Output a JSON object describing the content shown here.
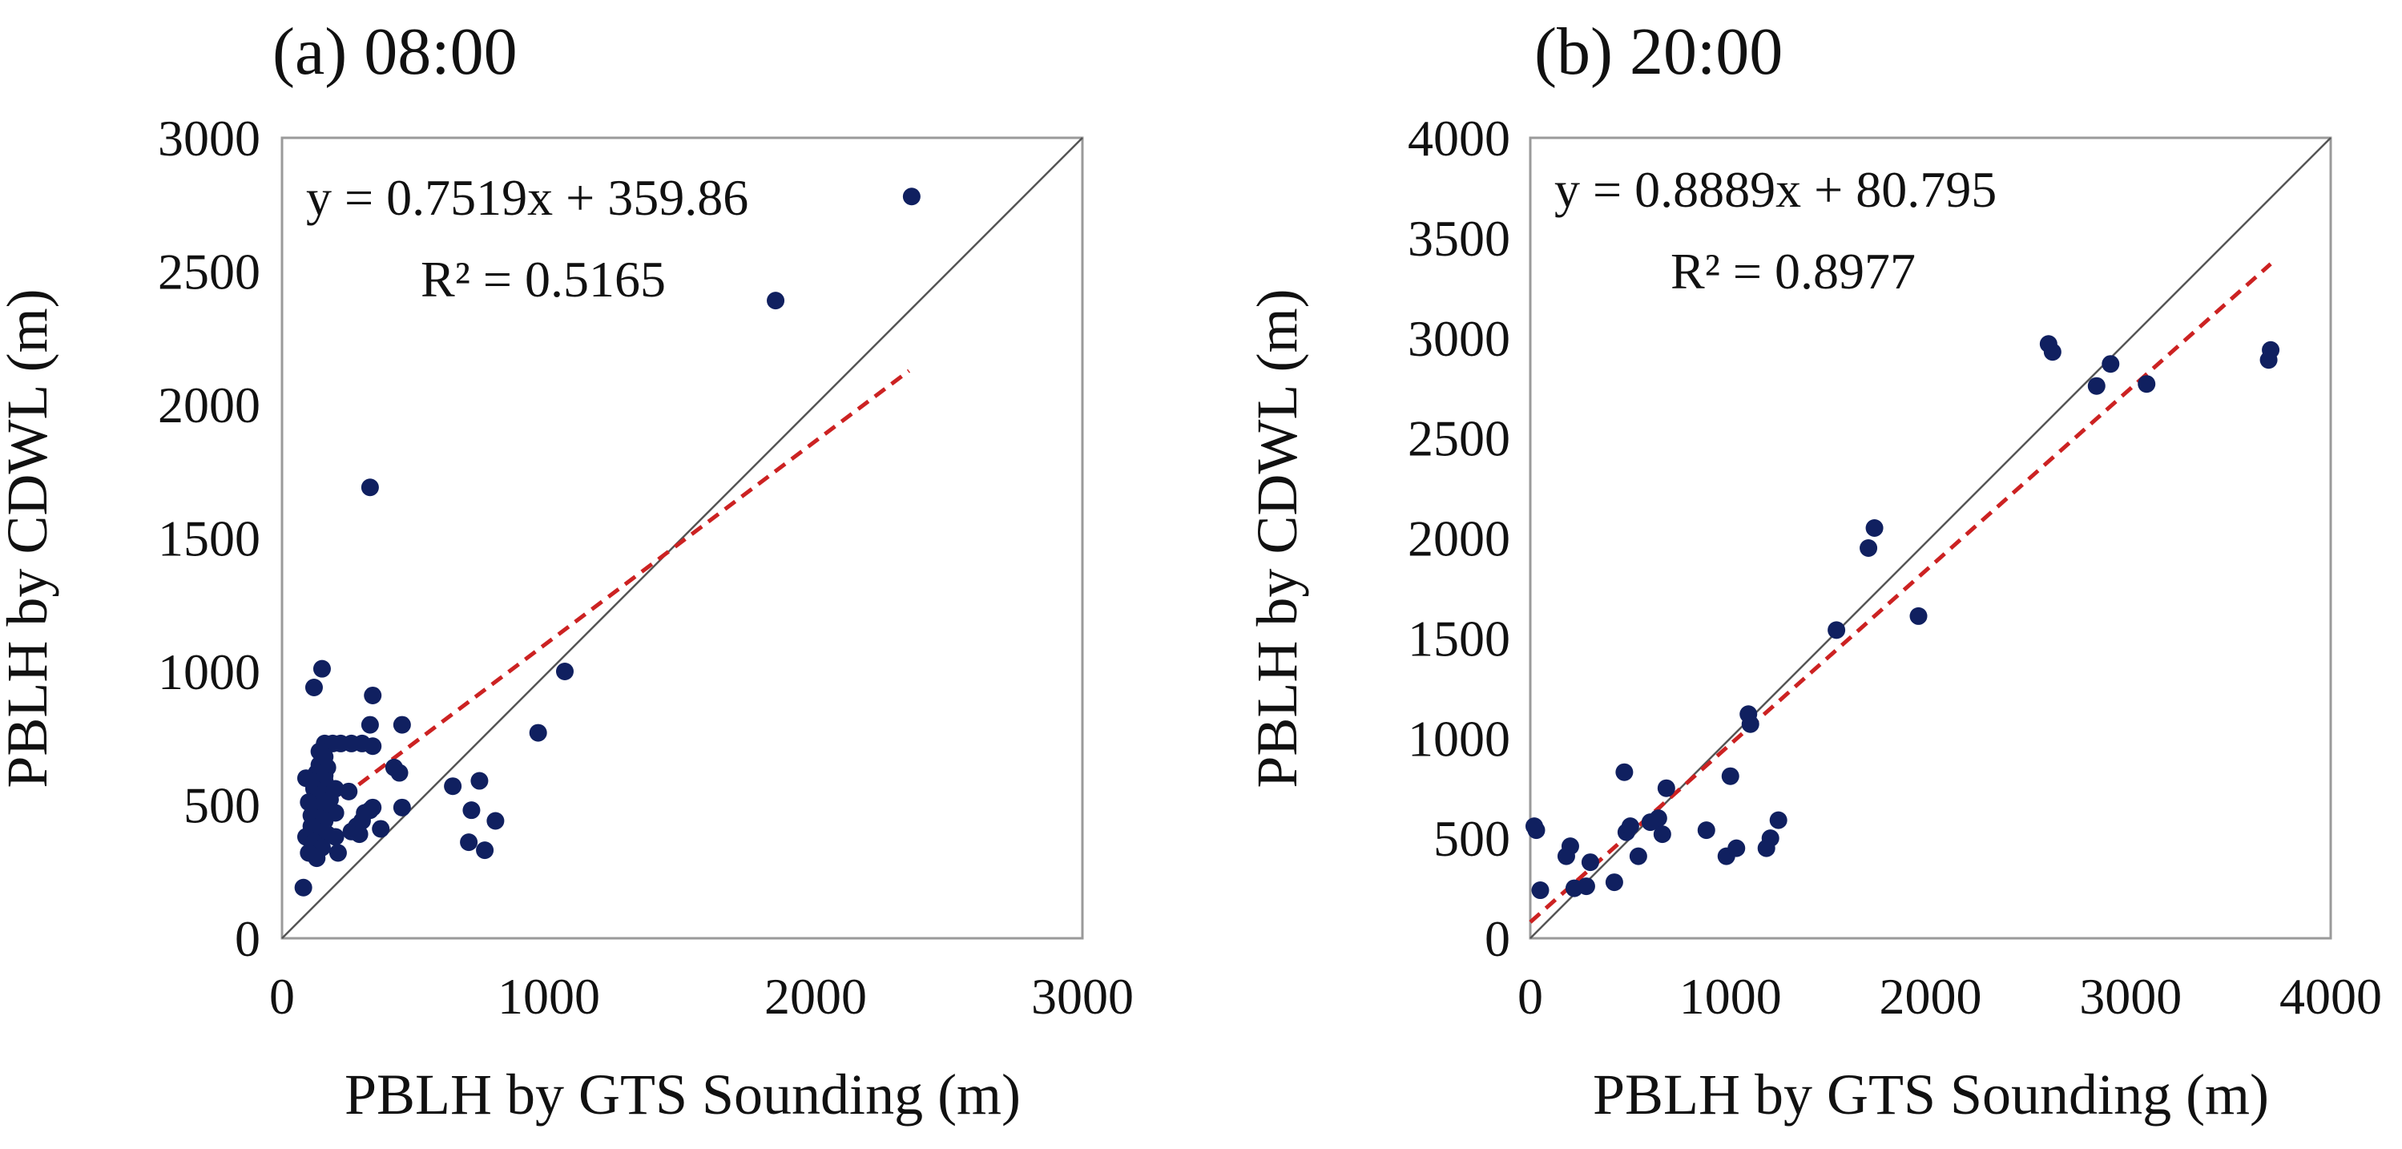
{
  "chart_data": [
    {
      "type": "scatter",
      "panel": "a",
      "title": "(a) 08:00",
      "xlabel": "PBLH by GTS Sounding (m)",
      "ylabel": "PBLH by CDWL (m)",
      "xlim": [
        0,
        3000
      ],
      "ylim": [
        0,
        3000
      ],
      "x_ticks": [
        0,
        1000,
        2000,
        3000
      ],
      "y_ticks": [
        0,
        500,
        1000,
        1500,
        2000,
        2500,
        3000
      ],
      "grid": false,
      "point_color": "#102060",
      "fit_color": "#cc2222",
      "one_to_one_color": "#555555",
      "regression": {
        "equation": "y = 0.7519x + 359.86",
        "r2_text": "R² = 0.5165",
        "slope": 0.7519,
        "intercept": 359.86,
        "x_range": [
          100,
          2350
        ]
      },
      "one_to_one_line": true,
      "points": [
        [
          2360,
          2780
        ],
        [
          1850,
          2390
        ],
        [
          330,
          1690
        ],
        [
          1060,
          1000
        ],
        [
          960,
          770
        ],
        [
          150,
          1010
        ],
        [
          120,
          940
        ],
        [
          340,
          910
        ],
        [
          450,
          800
        ],
        [
          330,
          800
        ],
        [
          160,
          730
        ],
        [
          190,
          730
        ],
        [
          220,
          730
        ],
        [
          260,
          730
        ],
        [
          300,
          730
        ],
        [
          340,
          720
        ],
        [
          140,
          700
        ],
        [
          160,
          680
        ],
        [
          140,
          650
        ],
        [
          170,
          640
        ],
        [
          130,
          620
        ],
        [
          160,
          610
        ],
        [
          420,
          640
        ],
        [
          440,
          620
        ],
        [
          110,
          590
        ],
        [
          160,
          590
        ],
        [
          200,
          560
        ],
        [
          250,
          550
        ],
        [
          90,
          600
        ],
        [
          120,
          560
        ],
        [
          150,
          540
        ],
        [
          180,
          520
        ],
        [
          100,
          510
        ],
        [
          130,
          490
        ],
        [
          170,
          480
        ],
        [
          200,
          470
        ],
        [
          110,
          460
        ],
        [
          140,
          450
        ],
        [
          160,
          440
        ],
        [
          110,
          420
        ],
        [
          130,
          400
        ],
        [
          170,
          390
        ],
        [
          200,
          380
        ],
        [
          90,
          380
        ],
        [
          120,
          360
        ],
        [
          150,
          340
        ],
        [
          100,
          320
        ],
        [
          130,
          300
        ],
        [
          210,
          320
        ],
        [
          260,
          400
        ],
        [
          280,
          420
        ],
        [
          300,
          440
        ],
        [
          330,
          480
        ],
        [
          340,
          490
        ],
        [
          310,
          470
        ],
        [
          370,
          410
        ],
        [
          290,
          390
        ],
        [
          450,
          490
        ],
        [
          640,
          570
        ],
        [
          740,
          590
        ],
        [
          710,
          480
        ],
        [
          800,
          440
        ],
        [
          700,
          360
        ],
        [
          760,
          330
        ],
        [
          80,
          190
        ]
      ]
    },
    {
      "type": "scatter",
      "panel": "b",
      "title": "(b) 20:00",
      "xlabel": "PBLH by GTS Sounding (m)",
      "ylabel": "PBLH by CDWL (m)",
      "xlim": [
        0,
        4000
      ],
      "ylim": [
        0,
        4000
      ],
      "x_ticks": [
        0,
        1000,
        2000,
        3000,
        4000
      ],
      "y_ticks": [
        0,
        500,
        1000,
        1500,
        2000,
        2500,
        3000,
        3500,
        4000
      ],
      "grid": false,
      "point_color": "#102060",
      "fit_color": "#cc2222",
      "one_to_one_color": "#555555",
      "regression": {
        "equation": "y = 0.8889x + 80.795",
        "r2_text": "R² = 0.8977",
        "slope": 0.8889,
        "intercept": 80.795,
        "x_range": [
          0,
          3700
        ]
      },
      "one_to_one_line": true,
      "points": [
        [
          20,
          560
        ],
        [
          30,
          540
        ],
        [
          50,
          240
        ],
        [
          180,
          410
        ],
        [
          200,
          460
        ],
        [
          220,
          250
        ],
        [
          280,
          260
        ],
        [
          300,
          380
        ],
        [
          420,
          280
        ],
        [
          470,
          830
        ],
        [
          480,
          530
        ],
        [
          500,
          560
        ],
        [
          540,
          410
        ],
        [
          600,
          580
        ],
        [
          640,
          600
        ],
        [
          660,
          520
        ],
        [
          680,
          750
        ],
        [
          1000,
          810
        ],
        [
          880,
          540
        ],
        [
          980,
          410
        ],
        [
          1030,
          450
        ],
        [
          1090,
          1120
        ],
        [
          1100,
          1070
        ],
        [
          1180,
          450
        ],
        [
          1200,
          500
        ],
        [
          1240,
          590
        ],
        [
          1530,
          1540
        ],
        [
          1690,
          1950
        ],
        [
          1720,
          2050
        ],
        [
          1940,
          1610
        ],
        [
          2590,
          2970
        ],
        [
          2610,
          2930
        ],
        [
          2830,
          2760
        ],
        [
          2900,
          2870
        ],
        [
          3080,
          2770
        ],
        [
          3690,
          2890
        ],
        [
          3700,
          2940
        ]
      ]
    }
  ]
}
